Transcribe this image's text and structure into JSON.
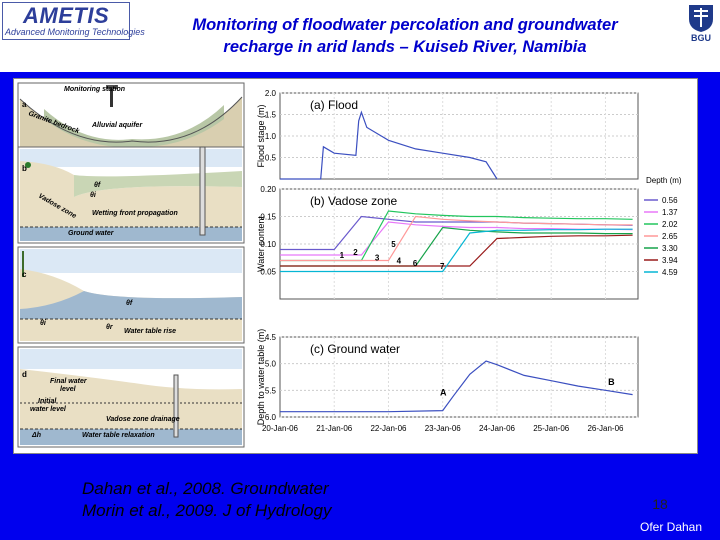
{
  "header": {
    "logo_main": "AMETIS",
    "logo_sub": "Advanced Monitoring Technologies",
    "title_line1": "Monitoring of floodwater percolation and groundwater",
    "title_line2": "recharge in arid lands – Kuiseb River, Namibia",
    "bgu_label": "BGU"
  },
  "panels_left": {
    "a": {
      "letter": "a",
      "monitoring": "Monitoring station",
      "granite": "Granite bedrock",
      "alluvial": "Alluvial aquifer"
    },
    "b": {
      "letter": "b",
      "theta_f": "θf",
      "theta_i": "θi",
      "vadose": "Vadose zone",
      "wetting": "Wetting front propagation",
      "ground": "Ground water"
    },
    "c": {
      "letter": "c",
      "theta_f": "θf",
      "theta_i": "θi",
      "theta_r": "θr",
      "rise": "Water table rise"
    },
    "d": {
      "letter": "d",
      "final": "Final water",
      "final2": "level",
      "initial": "Initial",
      "initial2": "water level",
      "drainage": "Vadose zone drainage",
      "delta_h": "Δh",
      "relax": "Water table relaxation"
    }
  },
  "chart_data": [
    {
      "type": "line",
      "title": "(a) Flood",
      "ylabel": "Flood stage (m)",
      "yticks": [
        "2.0",
        "1.5",
        "1.0",
        "0.5"
      ],
      "ylim": [
        0,
        2.0
      ],
      "x": [
        20.0,
        20.75,
        20.8,
        21.0,
        21.4,
        21.45,
        21.5,
        21.6,
        22.0,
        22.5,
        23.0,
        23.5,
        23.8,
        24.0
      ],
      "series": [
        {
          "values": [
            0,
            0,
            0.75,
            0.6,
            0.55,
            1.35,
            1.55,
            1.2,
            0.9,
            0.7,
            0.6,
            0.5,
            0.4,
            0
          ]
        }
      ]
    },
    {
      "type": "line",
      "title": "(b) Vadose zone",
      "ylabel": "Water content",
      "yticks": [
        "0.20",
        "0.15",
        "0.10",
        "0.05"
      ],
      "ylim": [
        0,
        0.2
      ],
      "legend_title": "Depth (m)",
      "legend_position": "right",
      "x": [
        20,
        20.5,
        21,
        21.5,
        22,
        22.5,
        23,
        23.5,
        24,
        24.5,
        25,
        25.5,
        26,
        26.5
      ],
      "series": [
        {
          "name": "0.56",
          "color": "#6a5acd",
          "values": [
            0.09,
            0.09,
            0.09,
            0.15,
            0.145,
            0.14,
            0.14,
            0.14,
            0.14,
            0.138,
            0.137,
            0.136,
            0.135,
            0.134
          ]
        },
        {
          "name": "1.37",
          "color": "#e879f9",
          "values": [
            0.08,
            0.08,
            0.08,
            0.08,
            0.14,
            0.135,
            0.132,
            0.13,
            0.13,
            0.128,
            0.128,
            0.127,
            0.127,
            0.126
          ]
        },
        {
          "name": "2.02",
          "color": "#22c55e",
          "values": [
            0.07,
            0.07,
            0.07,
            0.07,
            0.16,
            0.155,
            0.152,
            0.15,
            0.15,
            0.148,
            0.147,
            0.146,
            0.146,
            0.145
          ]
        },
        {
          "name": "2.65",
          "color": "#ff9999",
          "values": [
            0.07,
            0.07,
            0.07,
            0.07,
            0.07,
            0.15,
            0.145,
            0.142,
            0.14,
            0.138,
            0.137,
            0.136,
            0.135,
            0.135
          ]
        },
        {
          "name": "3.30",
          "color": "#16a34a",
          "values": [
            0.06,
            0.06,
            0.06,
            0.06,
            0.06,
            0.06,
            0.13,
            0.125,
            0.122,
            0.12,
            0.12,
            0.12,
            0.119,
            0.119
          ]
        },
        {
          "name": "3.94",
          "color": "#991b1b",
          "values": [
            0.06,
            0.06,
            0.06,
            0.06,
            0.06,
            0.06,
            0.06,
            0.06,
            0.11,
            0.112,
            0.114,
            0.115,
            0.115,
            0.116
          ]
        },
        {
          "name": "4.59",
          "color": "#06b6d4",
          "values": [
            0.05,
            0.05,
            0.05,
            0.05,
            0.05,
            0.05,
            0.05,
            0.12,
            0.125,
            0.125,
            0.126,
            0.126,
            0.127,
            0.127
          ]
        }
      ],
      "annotations": [
        "1",
        "2",
        "3",
        "4",
        "5",
        "6",
        "7"
      ]
    },
    {
      "type": "line",
      "title": "(c) Ground water",
      "ylabel": "Depth to water table (m)",
      "yticks": [
        "4.5",
        "5.0",
        "5.5",
        "6.0"
      ],
      "ylim": [
        4.5,
        6.0
      ],
      "xticks": [
        "20-Jan-06",
        "21-Jan-06",
        "22-Jan-06",
        "23-Jan-06",
        "24-Jan-06",
        "25-Jan-06",
        "26-Jan-06"
      ],
      "x": [
        20,
        21,
        22,
        23,
        23.2,
        23.5,
        23.8,
        24.0,
        24.5,
        25,
        25.5,
        26,
        26.5
      ],
      "series": [
        {
          "values": [
            5.9,
            5.9,
            5.9,
            5.88,
            5.6,
            5.2,
            4.95,
            5.02,
            5.22,
            5.32,
            5.42,
            5.5,
            5.58
          ]
        }
      ],
      "annotations": [
        "A",
        "B"
      ]
    }
  ],
  "footer": {
    "cite_line1": "Dahan et al., 2008. Groundwater",
    "cite_line2": "Morin et al., 2009. J of Hydrology",
    "page": "18",
    "author": "Ofer Dahan"
  }
}
